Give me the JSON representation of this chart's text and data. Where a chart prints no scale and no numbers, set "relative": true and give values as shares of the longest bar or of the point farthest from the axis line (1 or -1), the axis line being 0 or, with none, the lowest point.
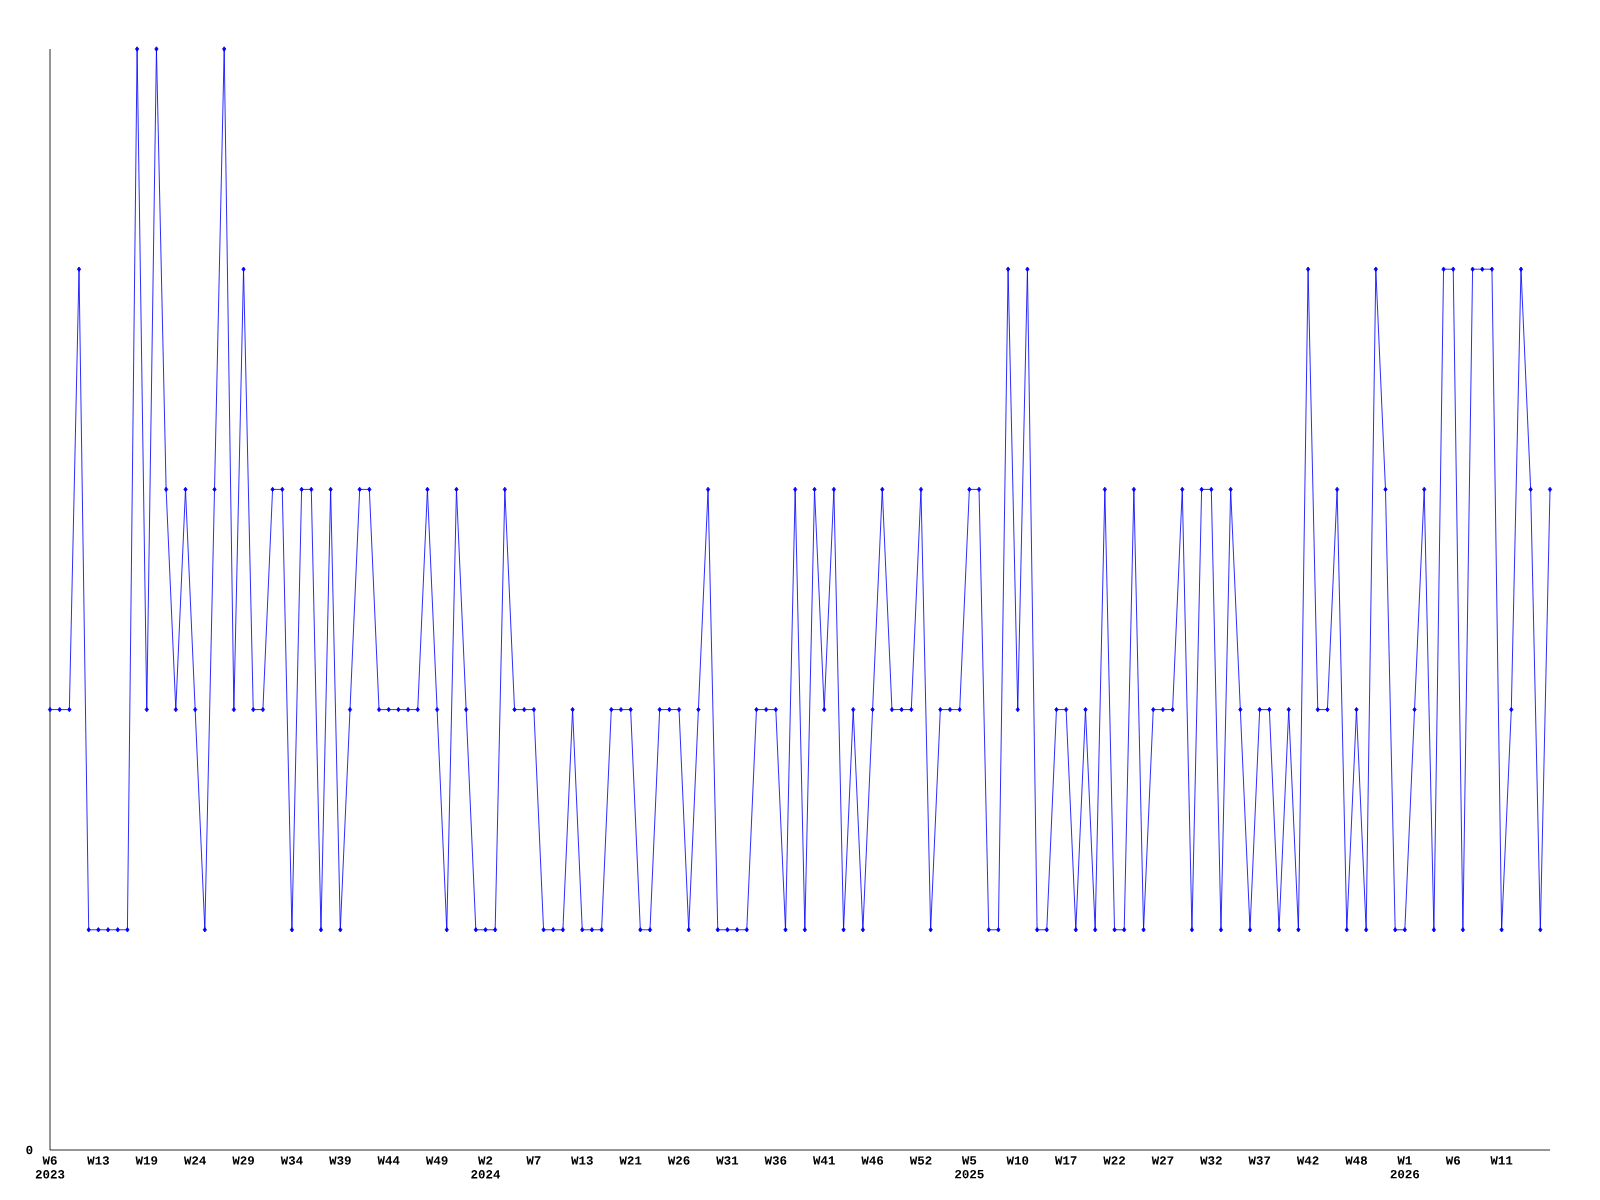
{
  "chart_data": {
    "type": "line",
    "relative": true,
    "color": "#0000ff",
    "marker": "diamond",
    "annotations": [
      "0"
    ],
    "categories": [
      "W6 2023",
      null,
      null,
      null,
      null,
      "W13",
      null,
      null,
      null,
      null,
      "W19",
      null,
      null,
      null,
      null,
      "W24",
      null,
      null,
      null,
      null,
      "W29",
      null,
      null,
      null,
      null,
      "W34",
      null,
      null,
      null,
      null,
      "W39",
      null,
      null,
      null,
      null,
      "W44",
      null,
      null,
      null,
      null,
      "W49",
      null,
      null,
      null,
      null,
      "W2 2024",
      null,
      null,
      null,
      null,
      "W7",
      null,
      null,
      null,
      null,
      "W13",
      null,
      null,
      null,
      null,
      "W21",
      null,
      null,
      null,
      null,
      "W26",
      null,
      null,
      null,
      null,
      "W31",
      null,
      null,
      null,
      null,
      "W36",
      null,
      null,
      null,
      null,
      "W41",
      null,
      null,
      null,
      null,
      "W46",
      null,
      null,
      null,
      null,
      "W52",
      null,
      null,
      null,
      null,
      "W5 2025",
      null,
      null,
      null,
      null,
      "W10",
      null,
      null,
      null,
      null,
      "W17",
      null,
      null,
      null,
      null,
      "W22",
      null,
      null,
      null,
      null,
      "W27",
      null,
      null,
      null,
      null,
      "W32",
      null,
      null,
      null,
      null,
      "W37",
      null,
      null,
      null,
      null,
      "W42",
      null,
      null,
      null,
      null,
      "W48",
      null,
      null,
      null,
      null,
      "W1 2026",
      null,
      null,
      null,
      null,
      "W6",
      null,
      null,
      null,
      null,
      "W11",
      null,
      null,
      null,
      null,
      null
    ],
    "values": [
      0.4,
      0.4,
      0.4,
      0.8,
      0.2,
      0.2,
      0.2,
      0.2,
      0.2,
      1.0,
      0.4,
      1.0,
      0.6,
      0.4,
      0.6,
      0.4,
      0.2,
      0.6,
      1.0,
      0.4,
      0.8,
      0.4,
      0.4,
      0.6,
      0.6,
      0.2,
      0.6,
      0.6,
      0.2,
      0.6,
      0.2,
      0.4,
      0.6,
      0.6,
      0.4,
      0.4,
      0.4,
      0.4,
      0.4,
      0.6,
      0.4,
      0.2,
      0.6,
      0.4,
      0.2,
      0.2,
      0.2,
      0.6,
      0.4,
      0.4,
      0.4,
      0.2,
      0.2,
      0.2,
      0.4,
      0.2,
      0.2,
      0.2,
      0.4,
      0.4,
      0.4,
      0.2,
      0.2,
      0.4,
      0.4,
      0.4,
      0.2,
      0.4,
      0.6,
      0.2,
      0.2,
      0.2,
      0.2,
      0.4,
      0.4,
      0.4,
      0.2,
      0.6,
      0.2,
      0.6,
      0.4,
      0.6,
      0.2,
      0.4,
      0.2,
      0.4,
      0.6,
      0.4,
      0.4,
      0.4,
      0.6,
      0.2,
      0.4,
      0.4,
      0.4,
      0.6,
      0.6,
      0.2,
      0.2,
      0.8,
      0.4,
      0.8,
      0.2,
      0.2,
      0.4,
      0.4,
      0.2,
      0.4,
      0.2,
      0.6,
      0.2,
      0.2,
      0.6,
      0.2,
      0.4,
      0.4,
      0.4,
      0.6,
      0.2,
      0.6,
      0.6,
      0.2,
      0.6,
      0.4,
      0.2,
      0.4,
      0.4,
      0.2,
      0.4,
      0.2,
      0.8,
      0.4,
      0.4,
      0.6,
      0.2,
      0.4,
      0.2,
      0.8,
      0.6,
      0.2,
      0.2,
      0.4,
      0.6,
      0.2,
      0.8,
      0.8,
      0.2,
      0.8,
      0.8,
      0.8,
      0.2,
      0.4,
      0.8,
      0.6,
      0.2,
      0.6
    ]
  }
}
